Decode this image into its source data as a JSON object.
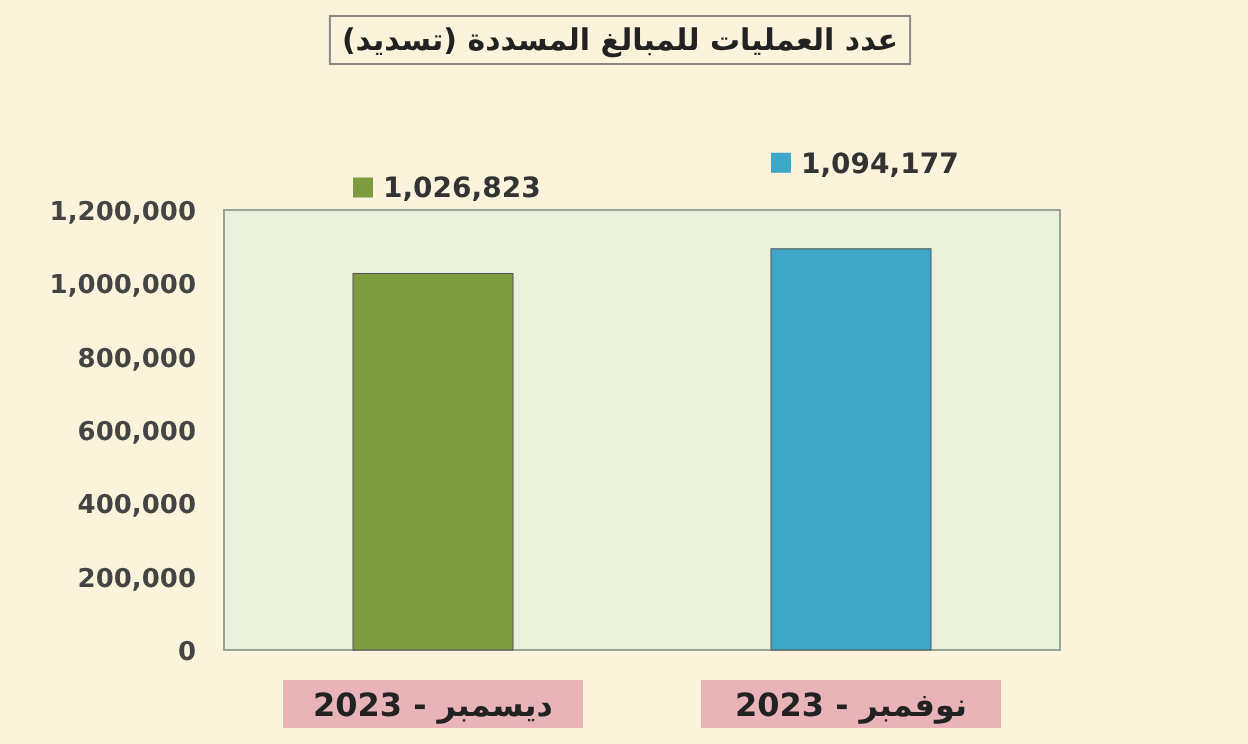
{
  "chart_data": {
    "type": "bar",
    "title": "عدد العمليات للمبالغ المسددة (تسديد)",
    "categories": [
      "ديسمبر - 2023",
      "نوفمبر - 2023"
    ],
    "values": [
      1026823,
      1094177
    ],
    "colors": [
      "#7e9c3e",
      "#3ea6c6"
    ],
    "value_labels": [
      "1,026,823",
      "1,094,177"
    ],
    "ylim": [
      0,
      1200000
    ],
    "yticks": [
      0,
      {
        "value": 200000,
        "label": "200,000"
      },
      {
        "value": 400000,
        "label": "400,000"
      },
      {
        "value": 600000,
        "label": "600,000"
      },
      {
        "value": 800000,
        "label": "800,000"
      },
      {
        "value": 1000000,
        "label": "1,000,000"
      },
      {
        "value": 1200000,
        "label": "1,200,000"
      }
    ],
    "grid": false
  }
}
